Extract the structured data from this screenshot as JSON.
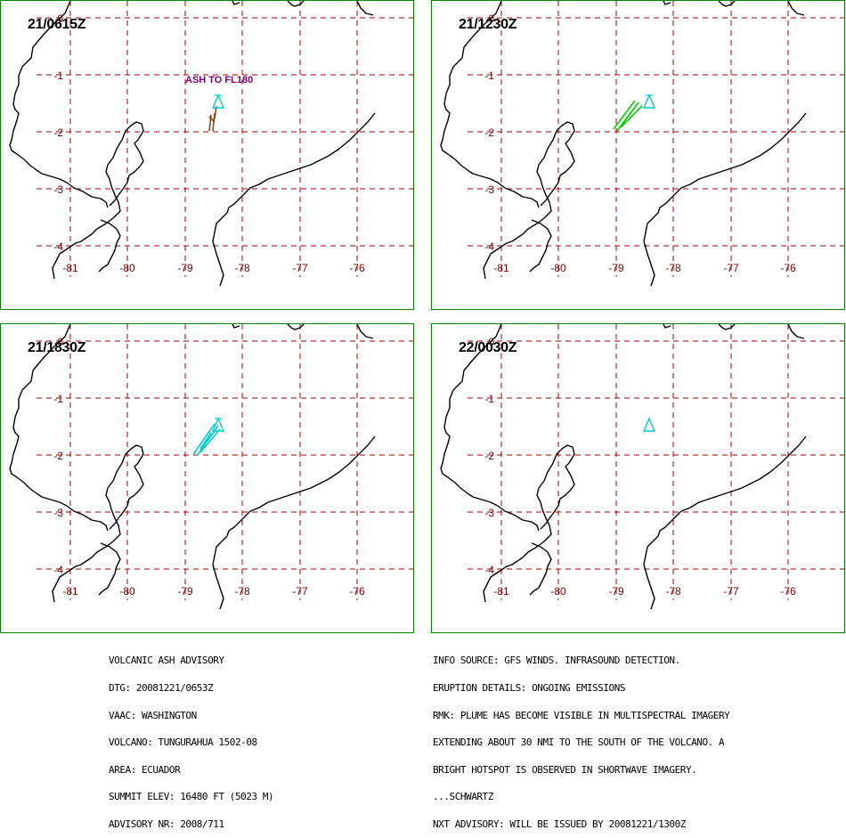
{
  "panels": [
    {
      "title": "21/0615Z",
      "plume_color": "#8b4513",
      "ash_label": "ASH TO FL180"
    },
    {
      "title": "21/1230Z",
      "plume_color": "#00cc00",
      "ash_label": ""
    },
    {
      "title": "21/1830Z",
      "plume_color": "#00cccc",
      "ash_label": ""
    },
    {
      "title": "22/0030Z",
      "plume_color": "#00cccc",
      "ash_label": ""
    }
  ],
  "axes": {
    "lat_labels": [
      "0",
      "-1",
      "-2",
      "-3",
      "-4"
    ],
    "lon_labels": [
      "-81",
      "-80",
      "-79",
      "-78",
      "-77",
      "-76"
    ]
  },
  "colors": {
    "grid": "#a00000",
    "coast": "#000000",
    "frame": "#008000",
    "volcano_marker": "#00cccc",
    "ash_label": "#800080"
  },
  "advisory_left": [
    "VOLCANIC ASH ADVISORY",
    "DTG: 20081221/0653Z",
    "VAAC: WASHINGTON",
    "VOLCANO: TUNGURAHUA 1502-08",
    "AREA: ECUADOR",
    "SUMMIT ELEV: 16480 FT (5023 M)",
    "ADVISORY NR: 2008/711"
  ],
  "advisory_right": [
    "INFO SOURCE: GFS WINDS. INFRASOUND DETECTION.",
    "ERUPTION DETAILS: ONGOING EMISSIONS",
    "RMK: PLUME HAS BECOME VISIBLE IN MULTISPECTRAL IMAGERY",
    "EXTENDING ABOUT 30 NMI TO THE SOUTH OF THE VOLCANO. A",
    "BRIGHT HOTSPOT IS OBSERVED IN SHORTWAVE IMAGERY.",
    "...SCHWARTZ",
    "NXT ADVISORY: WILL BE ISSUED BY 20081221/1300Z"
  ]
}
